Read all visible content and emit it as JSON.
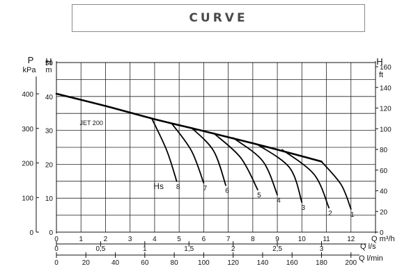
{
  "header": {
    "title": "CURVE"
  },
  "chart_data": {
    "type": "line",
    "model_label": "JET 200",
    "hs_label": "Hs",
    "axes": {
      "left_outer": {
        "unit_top": "P",
        "unit_bottom": "kPa",
        "ticks": [
          0,
          100,
          200,
          300,
          400
        ]
      },
      "left_inner": {
        "unit_top": "H",
        "unit_bottom": "m",
        "ticks": [
          0,
          10,
          20,
          30,
          40,
          50
        ],
        "ylim": [
          0,
          50
        ]
      },
      "right": {
        "unit_top": "H",
        "unit_bottom": "ft",
        "ticks": [
          0,
          20,
          40,
          60,
          80,
          100,
          120,
          140,
          160
        ]
      },
      "x_m3h": {
        "label": "Q m³/h",
        "ticks": [
          0,
          1,
          2,
          3,
          4,
          5,
          6,
          7,
          8,
          9,
          10,
          11,
          12
        ],
        "xlim": [
          0,
          13
        ]
      },
      "x_ls": {
        "label": "Q l/s",
        "ticks": [
          "0",
          "0,5",
          "1",
          "1,5",
          "2",
          "2,5",
          "3"
        ],
        "values": [
          0,
          0.5,
          1,
          1.5,
          2,
          2.5,
          3
        ]
      },
      "x_lmin": {
        "label": "Q l/min",
        "ticks": [
          0,
          20,
          40,
          60,
          80,
          100,
          120,
          140,
          160,
          180,
          200
        ]
      }
    },
    "main_curve": {
      "x": [
        0,
        2,
        4,
        6,
        8,
        10,
        10.8
      ],
      "y": [
        40.8,
        37.2,
        33.3,
        29.8,
        26.2,
        22.4,
        20.8
      ]
    },
    "series": [
      {
        "name": "8",
        "x": [
          3.9,
          4.5,
          4.9
        ],
        "y": [
          33.3,
          24.0,
          15.0
        ]
      },
      {
        "name": "7",
        "x": [
          4.7,
          5.5,
          6.0
        ],
        "y": [
          32.0,
          24.0,
          14.5
        ]
      },
      {
        "name": "6",
        "x": [
          5.5,
          6.4,
          6.9
        ],
        "y": [
          30.8,
          24.0,
          13.8
        ]
      },
      {
        "name": "5",
        "x": [
          6.4,
          7.5,
          8.2
        ],
        "y": [
          29.2,
          22.0,
          12.5
        ]
      },
      {
        "name": "4",
        "x": [
          7.2,
          8.4,
          9.0
        ],
        "y": [
          27.8,
          21.0,
          11.0
        ]
      },
      {
        "name": "3",
        "x": [
          8.2,
          9.5,
          10.0
        ],
        "y": [
          25.8,
          19.0,
          8.8
        ]
      },
      {
        "name": "2",
        "x": [
          9.2,
          10.5,
          11.1
        ],
        "y": [
          24.3,
          17.0,
          7.2
        ]
      },
      {
        "name": "1",
        "x": [
          10.8,
          11.6,
          12.0
        ],
        "y": [
          20.8,
          14.0,
          6.8
        ]
      }
    ],
    "grid": true
  }
}
